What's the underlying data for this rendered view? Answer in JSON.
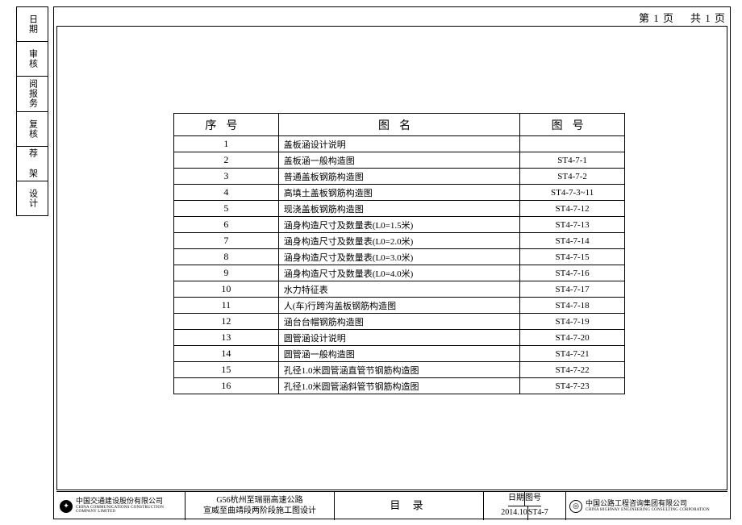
{
  "page_info": {
    "left": "第 1 页",
    "right": "共 1 页"
  },
  "side_labels": [
    "日期",
    "审核",
    "阅报务",
    "复核",
    "荐 架",
    "设计"
  ],
  "header": {
    "seq": "序号",
    "name": "图名",
    "no": "图号"
  },
  "rows": [
    {
      "seq": "1",
      "name": "盖板涵设计说明",
      "no": ""
    },
    {
      "seq": "2",
      "name": "盖板涵一般构造图",
      "no": "ST4-7-1"
    },
    {
      "seq": "3",
      "name": "普通盖板钢筋构造图",
      "no": "ST4-7-2"
    },
    {
      "seq": "4",
      "name": "高填土盖板钢筋构造图",
      "no": "ST4-7-3~11"
    },
    {
      "seq": "5",
      "name": "现浇盖板钢筋构造图",
      "no": "ST4-7-12"
    },
    {
      "seq": "6",
      "name": "涵身构造尺寸及数量表(L0=1.5米)",
      "no": "ST4-7-13"
    },
    {
      "seq": "7",
      "name": "涵身构造尺寸及数量表(L0=2.0米)",
      "no": "ST4-7-14"
    },
    {
      "seq": "8",
      "name": "涵身构造尺寸及数量表(L0=3.0米)",
      "no": "ST4-7-15"
    },
    {
      "seq": "9",
      "name": "涵身构造尺寸及数量表(L0=4.0米)",
      "no": "ST4-7-16"
    },
    {
      "seq": "10",
      "name": "水力特征表",
      "no": "ST4-7-17"
    },
    {
      "seq": "11",
      "name": "人(车)行跨沟盖板钢筋构造图",
      "no": "ST4-7-18"
    },
    {
      "seq": "12",
      "name": "涵台台帽钢筋构造图",
      "no": "ST4-7-19"
    },
    {
      "seq": "13",
      "name": "圆管涵设计说明",
      "no": "ST4-7-20"
    },
    {
      "seq": "14",
      "name": "圆管涵一般构造图",
      "no": "ST4-7-21"
    },
    {
      "seq": "15",
      "name": "孔径1.0米圆管涵直管节钢筋构造图",
      "no": "ST4-7-22"
    },
    {
      "seq": "16",
      "name": "孔径1.0米圆管涵斜管节钢筋构造图",
      "no": "ST4-7-23"
    }
  ],
  "title_block": {
    "org_left_cn": "中国交通建设股份有限公司",
    "org_left_en": "CHINA COMMUNICATIONS CONSTRUCTION COMPANY LIMITED",
    "project_line1": "G56杭州至瑞丽高速公路",
    "project_line2": "宣威至曲靖段两阶段施工图设计",
    "sheet_title": "目 录",
    "small": {
      "date_h": "日期",
      "no_h": "图号",
      "date_v": "2014.10",
      "no_v": "ST4-7"
    },
    "org_right_cn": "中国公路工程咨询集团有限公司",
    "org_right_en": "CHINA HIGHWAY ENGINEERING CONSULTING CORPORATION"
  }
}
